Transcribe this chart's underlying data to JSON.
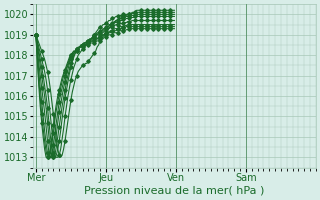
{
  "background_color": "#d8ede8",
  "plot_bg_color": "#d8ede8",
  "grid_color": "#a8c8b8",
  "line_color": "#1a6b2a",
  "xlabel": "Pression niveau de la mer( hPa )",
  "xlabel_fontsize": 8,
  "tick_label_fontsize": 7,
  "day_labels": [
    "Mer",
    "Jeu",
    "Ven",
    "Sam"
  ],
  "day_positions": [
    0,
    48,
    96,
    144
  ],
  "ylim": [
    1012.5,
    1020.5
  ],
  "yticks": [
    1013,
    1014,
    1015,
    1016,
    1017,
    1018,
    1019,
    1020
  ],
  "xlim": [
    -2,
    192
  ],
  "lines": [
    [
      1019.0,
      1018.8,
      1018.6,
      1018.4,
      1018.2,
      1018.0,
      1017.8,
      1017.5,
      1017.2,
      1016.8,
      1016.3,
      1015.7,
      1015.1,
      1014.5,
      1013.9,
      1013.4,
      1013.1,
      1013.0,
      1013.1,
      1013.4,
      1013.8,
      1014.3,
      1014.8,
      1015.3,
      1015.8,
      1016.2,
      1016.5,
      1016.8,
      1017.0,
      1017.2,
      1017.3,
      1017.4,
      1017.5,
      1017.5,
      1017.6,
      1017.6,
      1017.7,
      1017.8,
      1017.9,
      1018.0,
      1018.1,
      1018.2,
      1018.4,
      1018.5,
      1018.7,
      1018.8,
      1018.9,
      1019.0,
      1019.1,
      1019.2,
      1019.3,
      1019.4,
      1019.5,
      1019.6,
      1019.6,
      1019.7,
      1019.7,
      1019.8,
      1019.8,
      1019.9,
      1019.9,
      1019.95,
      1019.95,
      1020.0,
      1020.0,
      1020.0,
      1020.1,
      1020.1,
      1020.1,
      1020.2,
      1020.2,
      1020.2,
      1020.2,
      1020.2,
      1020.2,
      1020.2,
      1020.2,
      1020.2,
      1020.2,
      1020.2,
      1020.2,
      1020.2,
      1020.2,
      1020.2,
      1020.2,
      1020.2,
      1020.2,
      1020.2,
      1020.2,
      1020.2,
      1020.2,
      1020.2,
      1020.2,
      1020.2,
      1020.2,
      1020.2
    ],
    [
      1019.0,
      1018.7,
      1018.4,
      1018.1,
      1017.8,
      1017.5,
      1017.2,
      1016.8,
      1016.3,
      1015.7,
      1015.0,
      1014.3,
      1013.6,
      1013.1,
      1013.0,
      1013.0,
      1013.1,
      1013.4,
      1013.9,
      1014.4,
      1015.0,
      1015.5,
      1016.0,
      1016.4,
      1016.8,
      1017.1,
      1017.4,
      1017.6,
      1017.8,
      1018.0,
      1018.1,
      1018.2,
      1018.3,
      1018.4,
      1018.5,
      1018.5,
      1018.6,
      1018.7,
      1018.8,
      1018.9,
      1019.0,
      1019.1,
      1019.2,
      1019.3,
      1019.4,
      1019.4,
      1019.5,
      1019.5,
      1019.6,
      1019.6,
      1019.7,
      1019.7,
      1019.8,
      1019.8,
      1019.85,
      1019.9,
      1019.9,
      1019.9,
      1019.95,
      1019.95,
      1020.0,
      1020.0,
      1020.0,
      1020.0,
      1020.0,
      1020.0,
      1020.05,
      1020.05,
      1020.05,
      1020.1,
      1020.1,
      1020.1,
      1020.1,
      1020.1,
      1020.1,
      1020.1,
      1020.1,
      1020.1,
      1020.1,
      1020.1,
      1020.1,
      1020.1,
      1020.1,
      1020.1,
      1020.1,
      1020.1,
      1020.1,
      1020.1,
      1020.1,
      1020.1,
      1020.1,
      1020.1,
      1020.1,
      1020.1,
      1020.1,
      1020.1
    ],
    [
      1019.0,
      1018.6,
      1018.2,
      1017.8,
      1017.4,
      1017.0,
      1016.5,
      1016.0,
      1015.4,
      1014.7,
      1014.0,
      1013.4,
      1013.0,
      1013.0,
      1013.1,
      1013.4,
      1013.8,
      1014.3,
      1014.9,
      1015.4,
      1015.9,
      1016.3,
      1016.7,
      1017.1,
      1017.4,
      1017.7,
      1017.9,
      1018.1,
      1018.2,
      1018.3,
      1018.4,
      1018.5,
      1018.5,
      1018.6,
      1018.6,
      1018.7,
      1018.7,
      1018.8,
      1018.8,
      1018.9,
      1019.0,
      1019.0,
      1019.1,
      1019.1,
      1019.2,
      1019.2,
      1019.3,
      1019.3,
      1019.4,
      1019.4,
      1019.5,
      1019.5,
      1019.6,
      1019.6,
      1019.65,
      1019.7,
      1019.7,
      1019.75,
      1019.8,
      1019.8,
      1019.85,
      1019.85,
      1019.9,
      1019.9,
      1019.9,
      1019.9,
      1019.95,
      1019.95,
      1019.95,
      1020.0,
      1020.0,
      1020.0,
      1020.0,
      1020.0,
      1020.0,
      1020.0,
      1020.0,
      1020.0,
      1020.0,
      1020.0,
      1020.0,
      1020.0,
      1020.0,
      1020.0,
      1020.0,
      1020.0,
      1020.0,
      1020.0,
      1020.0,
      1020.0,
      1020.0,
      1020.0,
      1020.0,
      1020.0,
      1020.0,
      1020.0
    ],
    [
      1019.0,
      1018.5,
      1018.0,
      1017.5,
      1017.0,
      1016.5,
      1016.0,
      1015.4,
      1014.7,
      1014.0,
      1013.4,
      1013.0,
      1013.0,
      1013.1,
      1013.5,
      1014.0,
      1014.5,
      1015.0,
      1015.5,
      1015.9,
      1016.3,
      1016.7,
      1017.0,
      1017.3,
      1017.6,
      1017.8,
      1018.0,
      1018.1,
      1018.2,
      1018.3,
      1018.4,
      1018.5,
      1018.5,
      1018.6,
      1018.6,
      1018.7,
      1018.7,
      1018.8,
      1018.8,
      1018.9,
      1018.9,
      1019.0,
      1019.0,
      1019.1,
      1019.1,
      1019.2,
      1019.2,
      1019.3,
      1019.3,
      1019.4,
      1019.4,
      1019.5,
      1019.5,
      1019.55,
      1019.6,
      1019.6,
      1019.65,
      1019.65,
      1019.7,
      1019.7,
      1019.75,
      1019.75,
      1019.8,
      1019.8,
      1019.8,
      1019.85,
      1019.85,
      1019.85,
      1019.9,
      1019.9,
      1019.9,
      1019.9,
      1019.9,
      1019.9,
      1019.9,
      1019.9,
      1019.9,
      1019.9,
      1019.9,
      1019.9,
      1019.9,
      1019.9,
      1019.9,
      1019.9,
      1019.9,
      1019.9,
      1019.9,
      1019.9,
      1019.9,
      1019.9,
      1019.9,
      1019.9,
      1019.9,
      1019.9,
      1019.9,
      1019.9
    ],
    [
      1019.0,
      1018.3,
      1017.6,
      1017.0,
      1016.4,
      1015.8,
      1015.2,
      1014.5,
      1013.8,
      1013.2,
      1013.0,
      1013.0,
      1013.2,
      1013.6,
      1014.1,
      1014.7,
      1015.2,
      1015.6,
      1016.0,
      1016.4,
      1016.7,
      1017.0,
      1017.3,
      1017.6,
      1017.8,
      1018.0,
      1018.1,
      1018.2,
      1018.3,
      1018.4,
      1018.4,
      1018.5,
      1018.5,
      1018.6,
      1018.6,
      1018.6,
      1018.7,
      1018.7,
      1018.8,
      1018.8,
      1018.9,
      1018.9,
      1019.0,
      1019.0,
      1019.0,
      1019.1,
      1019.1,
      1019.2,
      1019.2,
      1019.3,
      1019.3,
      1019.35,
      1019.4,
      1019.4,
      1019.45,
      1019.5,
      1019.5,
      1019.5,
      1019.55,
      1019.55,
      1019.6,
      1019.6,
      1019.6,
      1019.65,
      1019.65,
      1019.65,
      1019.7,
      1019.7,
      1019.7,
      1019.7,
      1019.7,
      1019.7,
      1019.7,
      1019.7,
      1019.7,
      1019.7,
      1019.7,
      1019.7,
      1019.7,
      1019.7,
      1019.7,
      1019.7,
      1019.7,
      1019.7,
      1019.7,
      1019.7,
      1019.7,
      1019.7,
      1019.7,
      1019.7,
      1019.7,
      1019.7,
      1019.7,
      1019.7,
      1019.7,
      1019.7
    ],
    [
      1019.0,
      1018.1,
      1017.2,
      1016.4,
      1015.7,
      1015.0,
      1014.3,
      1013.7,
      1013.2,
      1013.0,
      1013.0,
      1013.2,
      1013.6,
      1014.1,
      1014.7,
      1015.2,
      1015.7,
      1016.1,
      1016.4,
      1016.7,
      1017.0,
      1017.3,
      1017.5,
      1017.7,
      1017.9,
      1018.0,
      1018.1,
      1018.2,
      1018.3,
      1018.3,
      1018.4,
      1018.4,
      1018.5,
      1018.5,
      1018.5,
      1018.6,
      1018.6,
      1018.6,
      1018.7,
      1018.7,
      1018.8,
      1018.8,
      1018.8,
      1018.9,
      1018.9,
      1019.0,
      1019.0,
      1019.0,
      1019.1,
      1019.1,
      1019.1,
      1019.2,
      1019.2,
      1019.2,
      1019.3,
      1019.3,
      1019.3,
      1019.35,
      1019.4,
      1019.4,
      1019.4,
      1019.45,
      1019.45,
      1019.5,
      1019.5,
      1019.5,
      1019.5,
      1019.5,
      1019.5,
      1019.5,
      1019.5,
      1019.5,
      1019.5,
      1019.5,
      1019.5,
      1019.5,
      1019.5,
      1019.5,
      1019.5,
      1019.5,
      1019.5,
      1019.5,
      1019.5,
      1019.5,
      1019.5,
      1019.5,
      1019.5,
      1019.5,
      1019.5,
      1019.5,
      1019.5,
      1019.5,
      1019.5,
      1019.5,
      1019.5,
      1019.5
    ],
    [
      1019.0,
      1017.9,
      1016.8,
      1015.9,
      1015.1,
      1014.4,
      1013.8,
      1013.3,
      1013.0,
      1013.0,
      1013.2,
      1013.7,
      1014.2,
      1014.8,
      1015.3,
      1015.7,
      1016.1,
      1016.4,
      1016.7,
      1017.0,
      1017.2,
      1017.4,
      1017.6,
      1017.8,
      1018.0,
      1018.1,
      1018.2,
      1018.2,
      1018.3,
      1018.3,
      1018.4,
      1018.4,
      1018.5,
      1018.5,
      1018.5,
      1018.6,
      1018.6,
      1018.6,
      1018.7,
      1018.7,
      1018.7,
      1018.8,
      1018.8,
      1018.8,
      1018.9,
      1018.9,
      1019.0,
      1019.0,
      1019.0,
      1019.1,
      1019.1,
      1019.1,
      1019.2,
      1019.2,
      1019.2,
      1019.2,
      1019.3,
      1019.3,
      1019.3,
      1019.3,
      1019.35,
      1019.35,
      1019.4,
      1019.4,
      1019.4,
      1019.4,
      1019.4,
      1019.4,
      1019.4,
      1019.4,
      1019.4,
      1019.4,
      1019.4,
      1019.4,
      1019.4,
      1019.4,
      1019.4,
      1019.4,
      1019.4,
      1019.4,
      1019.4,
      1019.4,
      1019.4,
      1019.4,
      1019.4,
      1019.4,
      1019.4,
      1019.4,
      1019.4,
      1019.4,
      1019.4,
      1019.4,
      1019.4,
      1019.4,
      1019.4,
      1019.4
    ],
    [
      1019.0,
      1017.7,
      1016.5,
      1015.5,
      1014.7,
      1014.0,
      1013.4,
      1013.0,
      1013.0,
      1013.1,
      1013.5,
      1014.0,
      1014.6,
      1015.1,
      1015.6,
      1016.0,
      1016.3,
      1016.6,
      1016.9,
      1017.1,
      1017.3,
      1017.5,
      1017.7,
      1017.9,
      1018.0,
      1018.1,
      1018.2,
      1018.2,
      1018.3,
      1018.3,
      1018.4,
      1018.4,
      1018.4,
      1018.5,
      1018.5,
      1018.5,
      1018.5,
      1018.6,
      1018.6,
      1018.6,
      1018.6,
      1018.7,
      1018.7,
      1018.7,
      1018.8,
      1018.8,
      1018.8,
      1018.9,
      1018.9,
      1019.0,
      1019.0,
      1019.0,
      1019.0,
      1019.1,
      1019.1,
      1019.1,
      1019.1,
      1019.2,
      1019.2,
      1019.2,
      1019.2,
      1019.2,
      1019.25,
      1019.25,
      1019.3,
      1019.3,
      1019.3,
      1019.3,
      1019.3,
      1019.3,
      1019.3,
      1019.3,
      1019.3,
      1019.3,
      1019.3,
      1019.3,
      1019.3,
      1019.3,
      1019.3,
      1019.3,
      1019.3,
      1019.3,
      1019.3,
      1019.3,
      1019.3,
      1019.3,
      1019.3,
      1019.3,
      1019.3,
      1019.3,
      1019.3,
      1019.3,
      1019.3,
      1019.3,
      1019.3,
      1019.3
    ]
  ]
}
